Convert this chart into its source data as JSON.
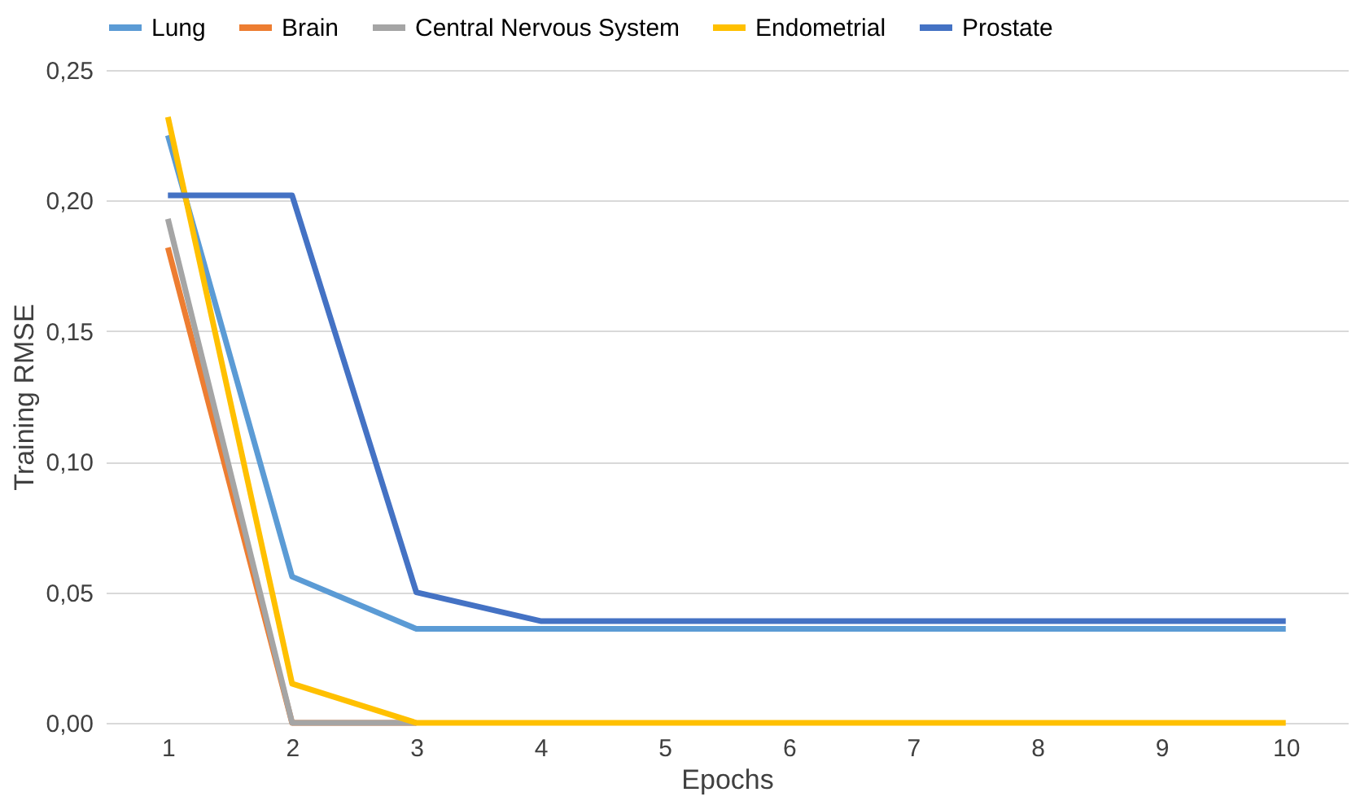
{
  "chart_data": {
    "type": "line",
    "xlabel": "Epochs",
    "ylabel": "Training RMSE",
    "categories": [
      "1",
      "2",
      "3",
      "4",
      "5",
      "6",
      "7",
      "8",
      "9",
      "10"
    ],
    "series": [
      {
        "name": "Lung",
        "color": "#5b9bd5",
        "values": [
          0.225,
          0.056,
          0.036,
          0.036,
          0.036,
          0.036,
          0.036,
          0.036,
          0.036,
          0.036
        ]
      },
      {
        "name": "Brain",
        "color": "#ed7d31",
        "values": [
          0.182,
          0.0,
          0.0,
          null,
          null,
          null,
          null,
          null,
          null,
          null
        ]
      },
      {
        "name": "Central Nervous System",
        "color": "#a5a5a5",
        "values": [
          0.193,
          0.0,
          0.0,
          null,
          null,
          null,
          null,
          null,
          null,
          null
        ]
      },
      {
        "name": "Endometrial",
        "color": "#ffc000",
        "values": [
          0.232,
          0.015,
          0.0,
          0.0,
          0.0,
          0.0,
          0.0,
          0.0,
          0.0,
          0.0
        ]
      },
      {
        "name": "Prostate",
        "color": "#4472c4",
        "values": [
          0.202,
          0.202,
          0.05,
          0.039,
          0.039,
          0.039,
          0.039,
          0.039,
          0.039,
          0.039
        ]
      }
    ],
    "ylim": [
      0,
      0.25
    ],
    "yticks": [
      {
        "value": 0,
        "label": "0,00"
      },
      {
        "value": 0.05,
        "label": "0,05"
      },
      {
        "value": 0.1,
        "label": "0,10"
      },
      {
        "value": 0.15,
        "label": "0,15"
      },
      {
        "value": 0.2,
        "label": "0,20"
      },
      {
        "value": 0.25,
        "label": "0,25"
      }
    ],
    "grid": "y",
    "legend": "top",
    "marker": "none",
    "line_style": "solid"
  }
}
